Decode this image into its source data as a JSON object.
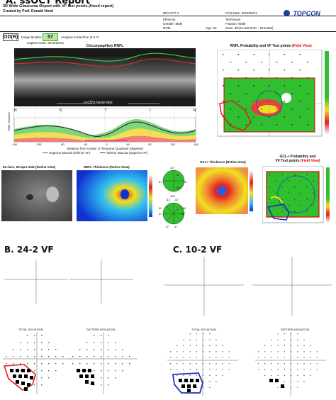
{
  "sectionA": {
    "title": "A. ssOCT Report",
    "report_title": "3D Wide Glaucoma Report with VF test points (Hood report)",
    "created_by": "Created by Prof. Donald Hood",
    "device": "DRI OCT-1",
    "ethnicity": "Ethnicity:",
    "gender": "Gender: Male",
    "dob": "DOB:",
    "age": "Age: 60",
    "print_date": "Print Date: 2016/05/11",
    "technician": "Technician:",
    "fixation": "Fixation: Wide",
    "scan": "Scan: 3D(12.0x9.0mm - 512x256)",
    "brand": "TOPCON",
    "eye": "OD(R)",
    "image_quality_label": "Image Quality:",
    "image_quality": "57",
    "analysis_mode": "Analysis mode:Fine (2.0.7)",
    "capture_date": "Capture Date: 2012/10/10",
    "rnfl_title": "Circumpapillary RNFL",
    "nasal_step": "<=15°= nasal step",
    "sector_labels": [
      "N",
      "S",
      "T",
      "I",
      "N"
    ],
    "x_axis_label": "Distance from Center of Temporal Quadrant (degrees)",
    "x_ticks": [
      "-180",
      "-135",
      "-90",
      "-45",
      "0",
      "45",
      "90",
      "135",
      "180"
    ],
    "legend": [
      "Superior Macula (Inferior VF)",
      "Inferior Macula (Superior VF)"
    ],
    "prob_title": "RNFL Probability and VF Test points",
    "field_view": "(Field View)",
    "enface_title": "En-face, 52.0µm Slab (Retina View)",
    "rnfl_thickness_title": "RNFL Thickness (Retina View)",
    "gcl_thickness_title": "GCL+ Thickness (Retina View)",
    "gcl_prob_title": "GCL+ Probability and",
    "gcl_prob_title2": "VF Test points",
    "clock_values": [
      "107",
      "126",
      "61",
      "91",
      "75",
      "102"
    ],
    "pie_values": [
      "114",
      "107",
      "89",
      "67",
      "109",
      "55",
      "87",
      "47"
    ]
  },
  "sectionB": {
    "title": "B. 24-2 VF",
    "td_label": "TOTAL DEVIATION",
    "pd_label": "PATTERN DEVIATION"
  },
  "sectionC": {
    "title": "C. 10-2 VF",
    "td_label": "TOTAL DEVIATION",
    "pd_label": "PATTERN DEVIATION"
  },
  "colors": {
    "green": "#2fbf2f",
    "red": "#e02020",
    "blue": "#2030c0",
    "yellow": "#f0e020"
  }
}
